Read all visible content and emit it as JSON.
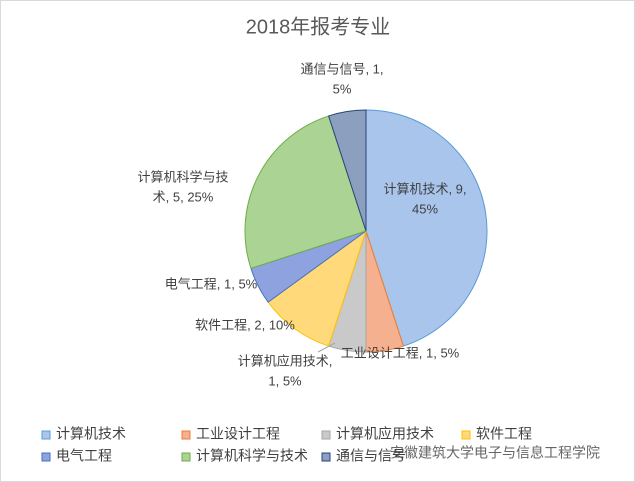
{
  "chart_data": {
    "type": "pie",
    "title": "2018年报考专业",
    "categories": [
      "计算机技术",
      "工业设计工程",
      "计算机应用技术",
      "软件工程",
      "电气工程",
      "计算机科学与技术",
      "通信与信号"
    ],
    "values": [
      9,
      1,
      1,
      2,
      1,
      5,
      1
    ],
    "value_labels": [
      [
        "计算机技术, 9,",
        "45%"
      ],
      [
        "工业设计工程, 1, 5%"
      ],
      [
        "计算机应用技术,",
        "1, 5%"
      ],
      [
        "软件工程, 2, 10%"
      ],
      [
        "电气工程, 1, 5%"
      ],
      [
        "计算机科学与技",
        "术, 5, 25%"
      ],
      [
        "通信与信号, 1,",
        "5%"
      ]
    ],
    "colors": [
      "#a9c5eb",
      "#f5b08f",
      "#c9c9c9",
      "#ffd97a",
      "#8fa2e0",
      "#aad394",
      "#8c9fbf"
    ],
    "legend": "bottom",
    "watermark": "安徽建筑大学电子与信息工程学院"
  }
}
